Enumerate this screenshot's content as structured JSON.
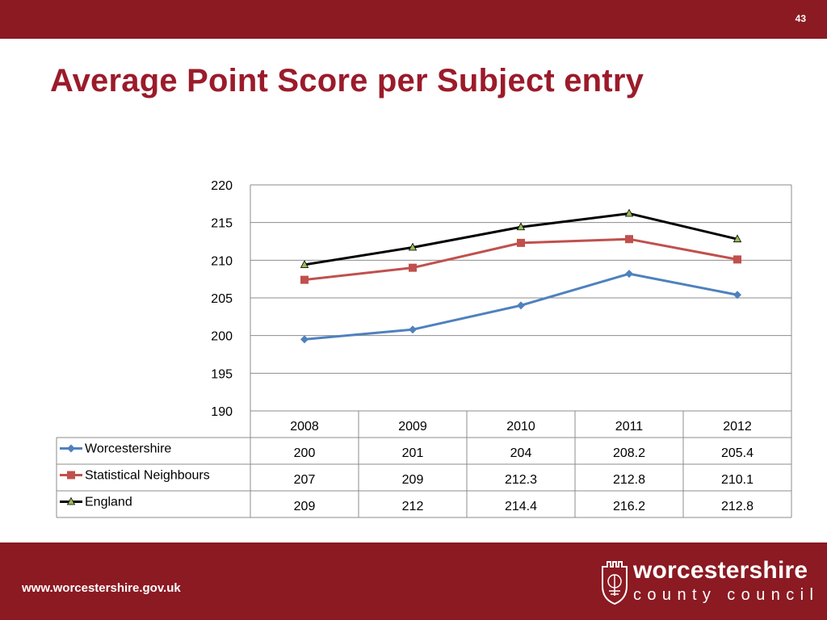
{
  "header": {
    "slide_number": "43"
  },
  "title": "Average Point Score per Subject entry",
  "footer": {
    "url": "www.worcestershire.gov.uk",
    "logo_line1": "worcestershire",
    "logo_line2": "county council"
  },
  "colors": {
    "brand": "#8b1a22",
    "title": "#9b1b2a",
    "worcestershire": "#4f81bd",
    "statistical_neighbours": "#c0504d",
    "england": "#000000",
    "england_marker": "#9bbb59"
  },
  "chart_data": {
    "type": "line",
    "categories": [
      "2008",
      "2009",
      "2010",
      "2011",
      "2012"
    ],
    "ylim": [
      190,
      220
    ],
    "yticks": [
      "190",
      "195",
      "200",
      "205",
      "210",
      "215",
      "220"
    ],
    "grid": true,
    "legend_placement": "data-table",
    "series": [
      {
        "name": "Worcestershire",
        "values": [
          199.5,
          200.8,
          204.0,
          208.2,
          205.4
        ],
        "labels": [
          "200",
          "201",
          "204",
          "208.2",
          "205.4"
        ],
        "marker": "diamond"
      },
      {
        "name": "Statistical Neighbours",
        "values": [
          207.4,
          209.0,
          212.3,
          212.8,
          210.1
        ],
        "labels": [
          "207",
          "209",
          "212.3",
          "212.8",
          "210.1"
        ],
        "marker": "square"
      },
      {
        "name": "England",
        "values": [
          209.4,
          211.7,
          214.4,
          216.2,
          212.8
        ],
        "labels": [
          "209",
          "212",
          "214.4",
          "216.2",
          "212.8"
        ],
        "marker": "triangle"
      }
    ]
  }
}
